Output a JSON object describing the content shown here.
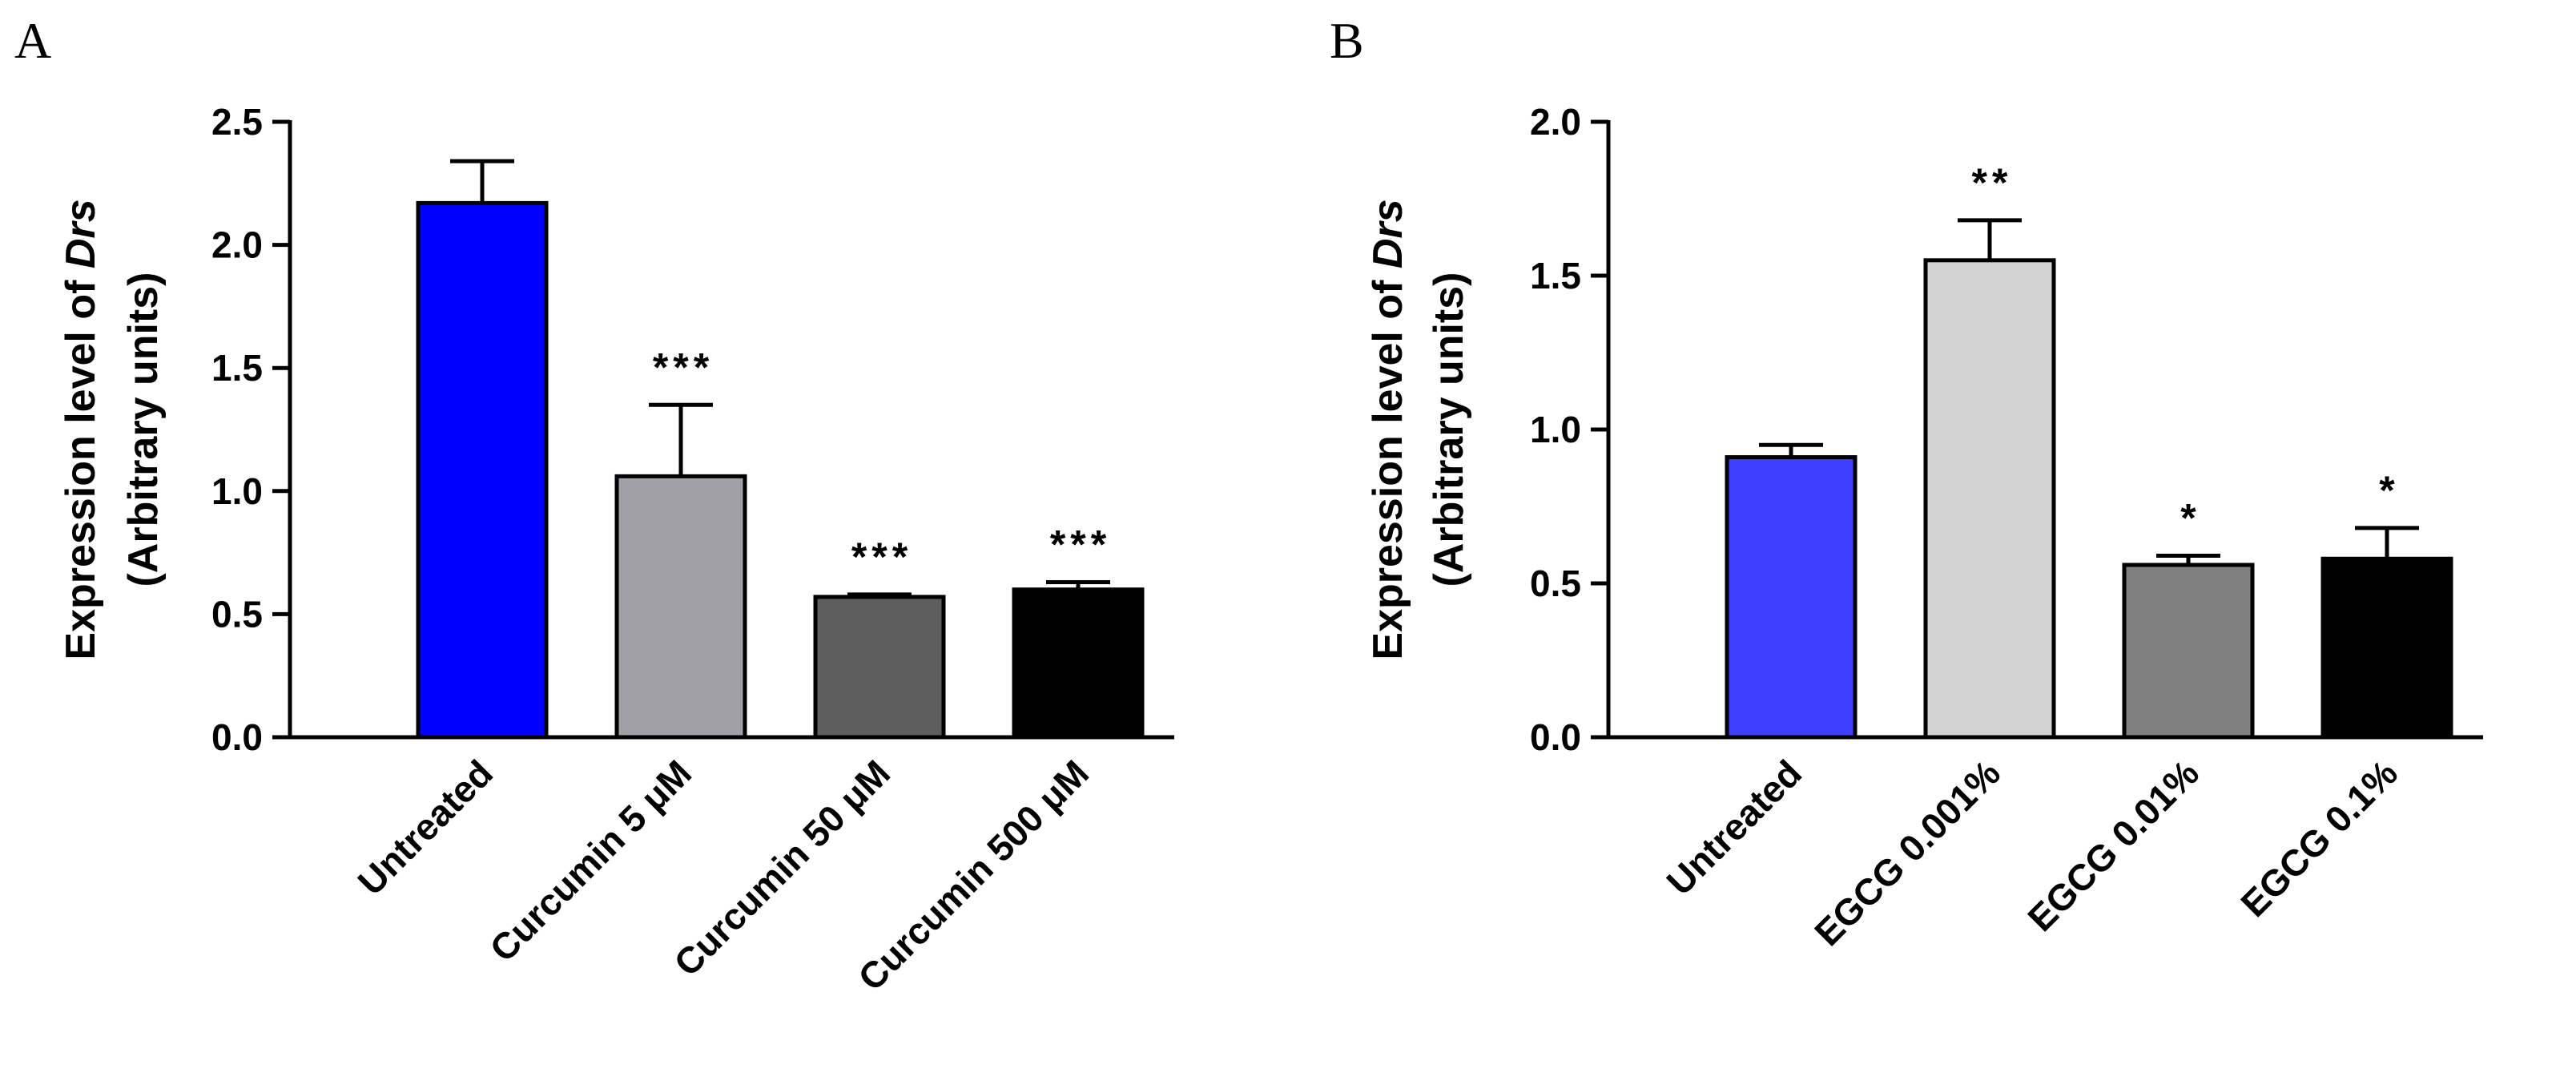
{
  "chart_data": [
    {
      "panel": "A",
      "type": "bar",
      "ylabel_line1_prefix": "Expression level of ",
      "ylabel_line1_italic": "Drs",
      "ylabel_line2": "(Arbitrary units)",
      "ylim": [
        0,
        2.5
      ],
      "yticks": [
        0.0,
        0.5,
        1.0,
        1.5,
        2.0,
        2.5
      ],
      "ytick_labels": [
        "0.0",
        "0.5",
        "1.0",
        "1.5",
        "2.0",
        "2.5"
      ],
      "categories": [
        "Untreated",
        "Curcumin 5 μM",
        "Curcumin 50 μM",
        "Curcumin 500 μM"
      ],
      "values": [
        2.17,
        1.06,
        0.57,
        0.6
      ],
      "errors": [
        0.17,
        0.29,
        0.01,
        0.03
      ],
      "colors": [
        "#0000ff",
        "#a0a0a6",
        "#5e5e5e",
        "#000000"
      ],
      "significance": [
        "",
        "***",
        "***",
        "***"
      ],
      "grid": false
    },
    {
      "panel": "B",
      "type": "bar",
      "ylabel_line1_prefix": "Expression level of ",
      "ylabel_line1_italic": "Drs",
      "ylabel_line2": "(Arbitrary units)",
      "ylim": [
        0,
        2.0
      ],
      "yticks": [
        0.0,
        0.5,
        1.0,
        1.5,
        2.0
      ],
      "ytick_labels": [
        "0.0",
        "0.5",
        "1.0",
        "1.5",
        "2.0"
      ],
      "categories": [
        "Untreated",
        "EGCG 0.001%",
        "EGCG 0.01%",
        "EGCG 0.1%"
      ],
      "values": [
        0.91,
        1.55,
        0.56,
        0.58
      ],
      "errors": [
        0.04,
        0.13,
        0.03,
        0.1
      ],
      "colors": [
        "#3f3fff",
        "#d3d3d3",
        "#808080",
        "#000000"
      ],
      "significance": [
        "",
        "**",
        "*",
        "*"
      ],
      "grid": false
    }
  ]
}
